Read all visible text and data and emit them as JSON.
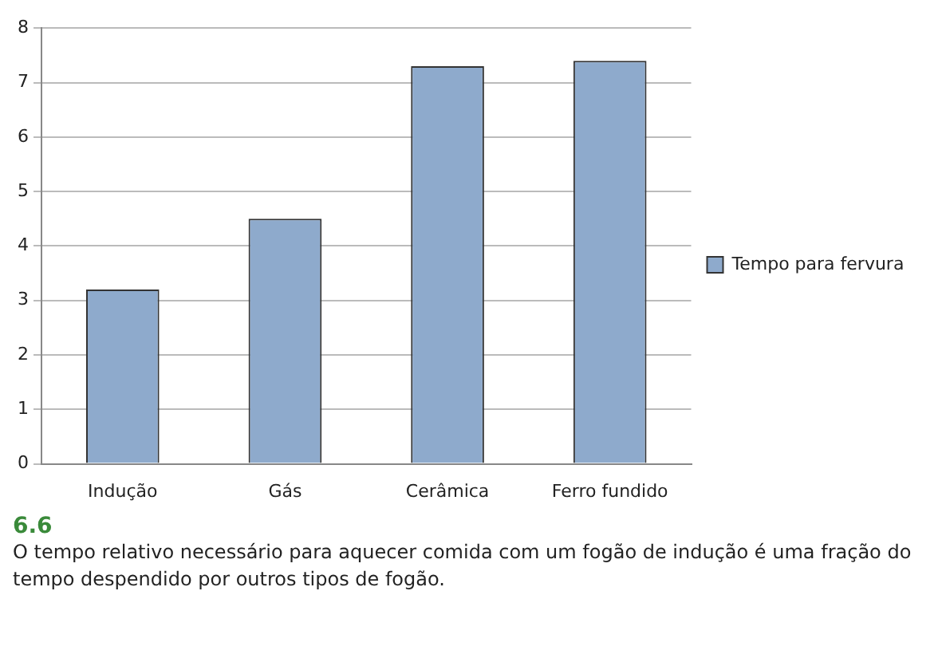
{
  "chart_data": {
    "type": "bar",
    "categories": [
      "Indução",
      "Gás",
      "Cerâmica",
      "Ferro fundido"
    ],
    "series": [
      {
        "name": "Tempo para fervura",
        "color": "#8eaacc",
        "values": [
          3.2,
          4.5,
          7.3,
          7.4
        ]
      }
    ],
    "ylim": [
      0,
      8
    ],
    "yticks": [
      0,
      1,
      2,
      3,
      4,
      5,
      6,
      7,
      8
    ],
    "grid": "y",
    "legend": "right",
    "annotations": [
      "6.6",
      "O tempo relativo necessário para aquecer comida com um fogão de indução é uma fração do tempo despendido por outros tipos de fogão."
    ]
  }
}
